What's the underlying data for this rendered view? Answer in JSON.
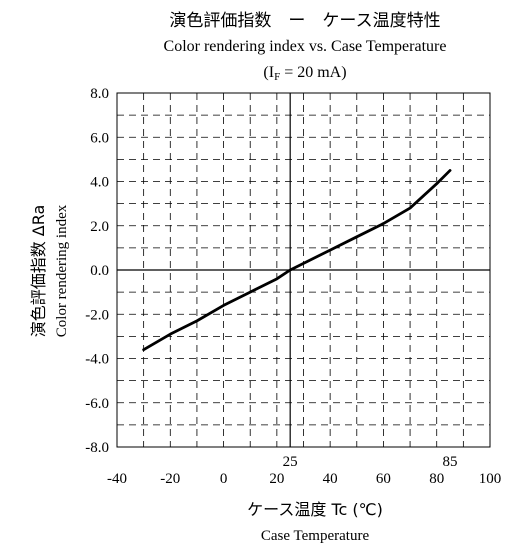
{
  "chart_data": {
    "type": "line",
    "title_jp": "演色評価指数　ー　ケース温度特性",
    "title_en": "Color rendering index vs. Case Temperature",
    "condition": "(IF = 20 mA)",
    "condition_parts": {
      "open": "(I",
      "sub": "F",
      "rest": " = 20 mA)"
    },
    "ylabel_jp": "演色評価指数 ΔRa",
    "ylabel_en": "Color rendering index",
    "xlabel_jp": "ケース温度 Tc (℃)",
    "xlabel_en": "Case Temperature",
    "xlim": [
      -40,
      100
    ],
    "ylim": [
      -8.0,
      8.0
    ],
    "x_ticks": [
      -40,
      -20,
      0,
      20,
      40,
      60,
      80,
      100
    ],
    "x_tick_labels": [
      "-40",
      "-20",
      "0",
      "20",
      "40",
      "60",
      "80",
      "100"
    ],
    "y_ticks": [
      -8.0,
      -6.0,
      -4.0,
      -2.0,
      0.0,
      2.0,
      4.0,
      6.0,
      8.0
    ],
    "y_tick_labels": [
      "-8.0",
      "-6.0",
      "-4.0",
      "-2.0",
      "0.0",
      "2.0",
      "4.0",
      "6.0",
      "8.0"
    ],
    "x_minor_step": 10,
    "y_minor_step": 1.0,
    "reference_x": 25,
    "reference_x_label": "25",
    "extra_x_label_value": 85,
    "extra_x_label": "85",
    "reference_y": 0,
    "grid": "dashed",
    "series": [
      {
        "x": [
          -30,
          -20,
          -10,
          0,
          10,
          20,
          25,
          30,
          40,
          50,
          60,
          70,
          80,
          85
        ],
        "y": [
          -3.6,
          -2.9,
          -2.3,
          -1.6,
          -1.0,
          -0.4,
          0.0,
          0.3,
          0.9,
          1.5,
          2.1,
          2.8,
          3.9,
          4.5
        ]
      }
    ]
  },
  "colors": {
    "line": "#000000",
    "grid": "#000000",
    "background": "#ffffff"
  }
}
